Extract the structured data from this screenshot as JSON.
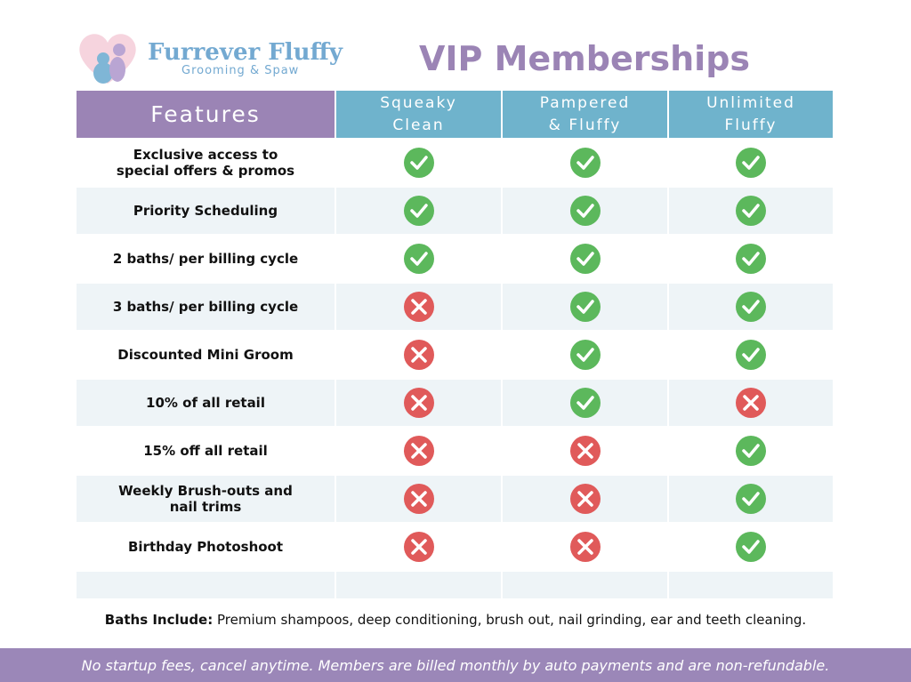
{
  "header": {
    "brand": "Furrever Fluffy",
    "tagline": "Grooming & Spaw",
    "title": "VIP Memberships"
  },
  "table": {
    "feature_header": "Features",
    "plans": [
      "Squeaky Clean",
      "Pampered & Fluffy",
      "Unlimited Fluffy"
    ],
    "rows": [
      {
        "feature": "Exclusive access to special offers & promos",
        "included": [
          true,
          true,
          true
        ]
      },
      {
        "feature": "Priority Scheduling",
        "included": [
          true,
          true,
          true
        ]
      },
      {
        "feature": "2 baths/ per billing cycle",
        "included": [
          true,
          true,
          true
        ]
      },
      {
        "feature": "3 baths/ per billing cycle",
        "included": [
          false,
          true,
          true
        ]
      },
      {
        "feature": "Discounted Mini Groom",
        "included": [
          false,
          true,
          true
        ]
      },
      {
        "feature": "10% of all retail",
        "included": [
          false,
          true,
          false
        ]
      },
      {
        "feature": "15% off all retail",
        "included": [
          false,
          false,
          true
        ]
      },
      {
        "feature": "Weekly Brush-outs and nail trims",
        "included": [
          false,
          false,
          true
        ]
      },
      {
        "feature": "Birthday Photoshoot",
        "included": [
          false,
          false,
          true
        ]
      }
    ]
  },
  "note": {
    "label": "Baths Include:",
    "text": "Premium shampoos, deep conditioning, brush out, nail grinding, ear and teeth cleaning."
  },
  "footer": "No startup fees, cancel anytime. Members are billed monthly by auto payments and are non-refundable."
}
